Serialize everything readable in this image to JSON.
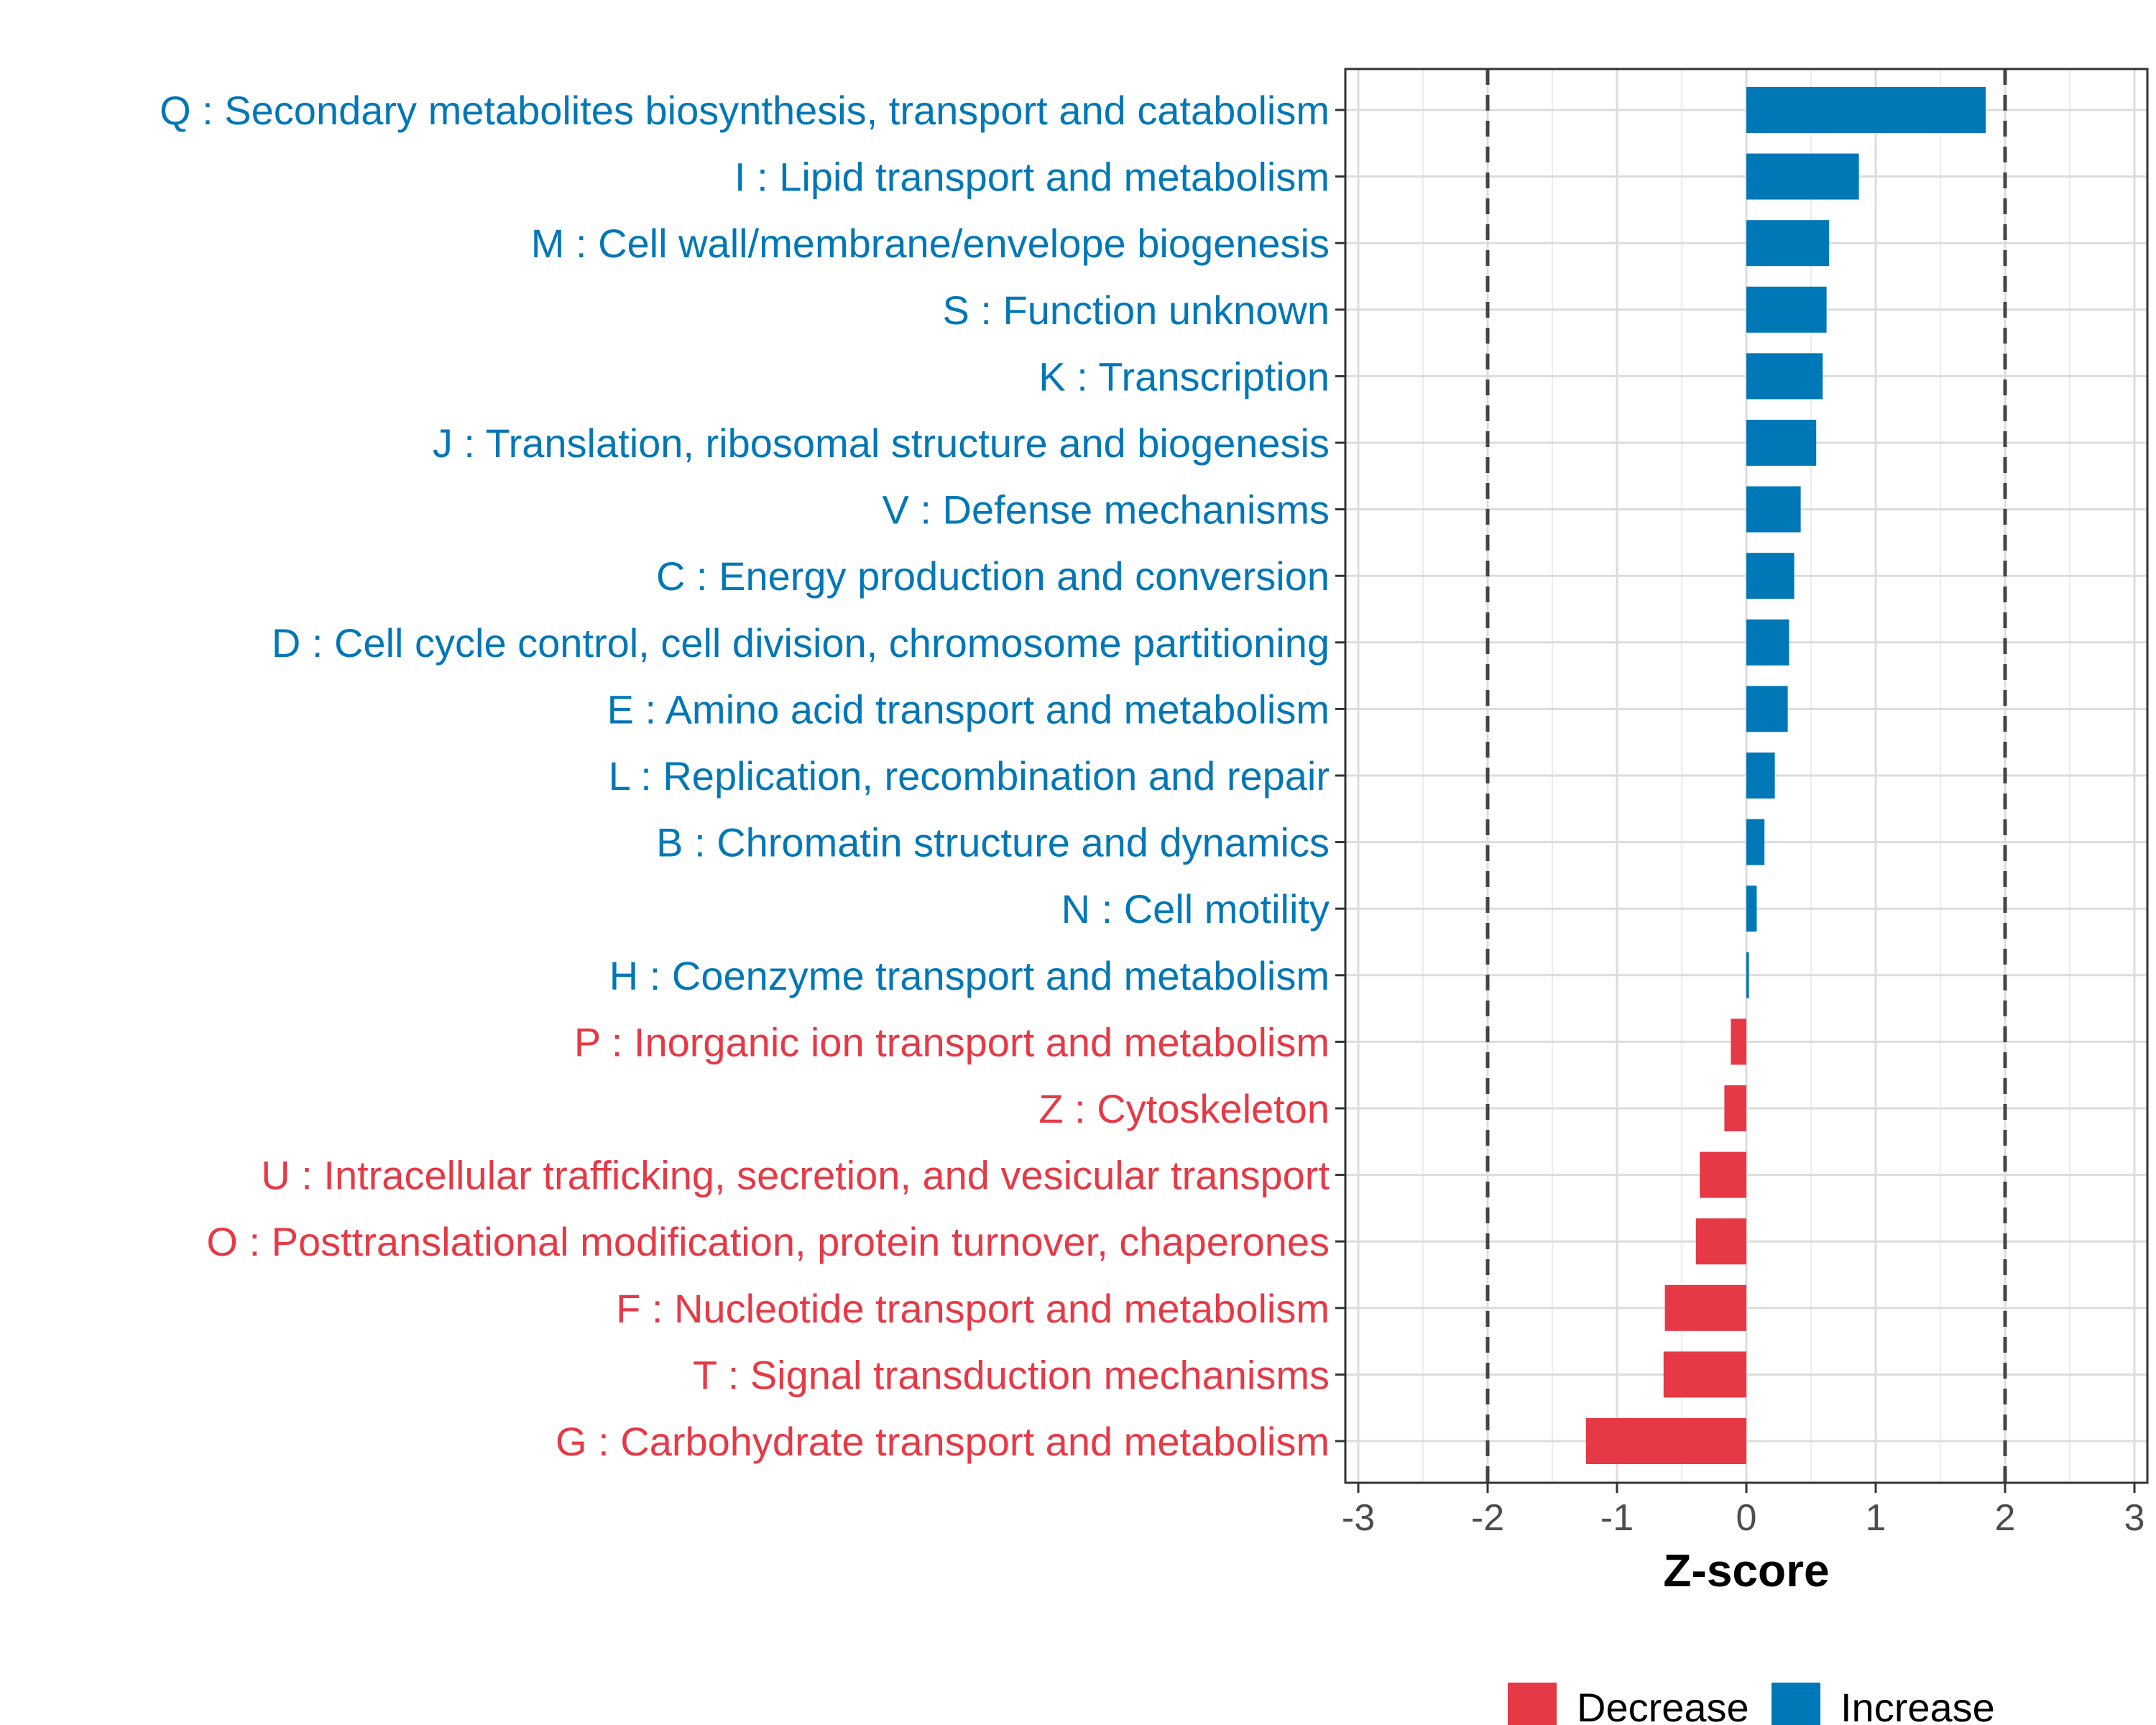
{
  "chart_data": {
    "type": "bar",
    "orientation": "horizontal",
    "title": "",
    "xlabel": "Z-score",
    "ylabel": "",
    "xlim": [
      -3.1,
      3.1
    ],
    "x_ticks": [
      -3,
      -2,
      -1,
      0,
      1,
      2,
      3
    ],
    "x_tick_labels": [
      "-3",
      "-2",
      "-1",
      "0",
      "1",
      "2",
      "3"
    ],
    "reference_lines": [
      -2,
      2
    ],
    "grid": true,
    "categories": [
      "Q : Secondary metabolites biosynthesis, transport and catabolism",
      "I : Lipid transport and metabolism",
      "M : Cell wall/membrane/envelope biogenesis",
      "S : Function unknown",
      "K : Transcription",
      "J : Translation, ribosomal structure and biogenesis",
      "V : Defense mechanisms",
      "C : Energy production and conversion",
      "D : Cell cycle control, cell division, chromosome partitioning",
      "E : Amino acid transport and metabolism",
      "L : Replication, recombination and repair",
      "B : Chromatin structure and dynamics",
      "N : Cell motility",
      "H : Coenzyme transport and metabolism",
      "P : Inorganic ion transport and metabolism",
      "Z : Cytoskeleton",
      "U : Intracellular trafficking, secretion, and vesicular transport",
      "O : Posttranslational modification, protein turnover, chaperones",
      "F : Nucleotide transport and metabolism",
      "T : Signal transduction mechanisms",
      "G : Carbohydrate transport and metabolism"
    ],
    "values": [
      1.85,
      0.87,
      0.64,
      0.62,
      0.59,
      0.54,
      0.42,
      0.37,
      0.33,
      0.32,
      0.22,
      0.14,
      0.08,
      0.02,
      -0.12,
      -0.17,
      -0.36,
      -0.39,
      -0.63,
      -0.64,
      -1.24
    ],
    "groups": [
      "Increase",
      "Increase",
      "Increase",
      "Increase",
      "Increase",
      "Increase",
      "Increase",
      "Increase",
      "Increase",
      "Increase",
      "Increase",
      "Increase",
      "Increase",
      "Increase",
      "Decrease",
      "Decrease",
      "Decrease",
      "Decrease",
      "Decrease",
      "Decrease",
      "Decrease"
    ],
    "legend": {
      "position": "bottom",
      "entries": [
        {
          "label": "Decrease",
          "color": "#E63946"
        },
        {
          "label": "Increase",
          "color": "#0077B6"
        }
      ]
    },
    "colors": {
      "Decrease": "#E63946",
      "Increase": "#0077B6"
    }
  }
}
